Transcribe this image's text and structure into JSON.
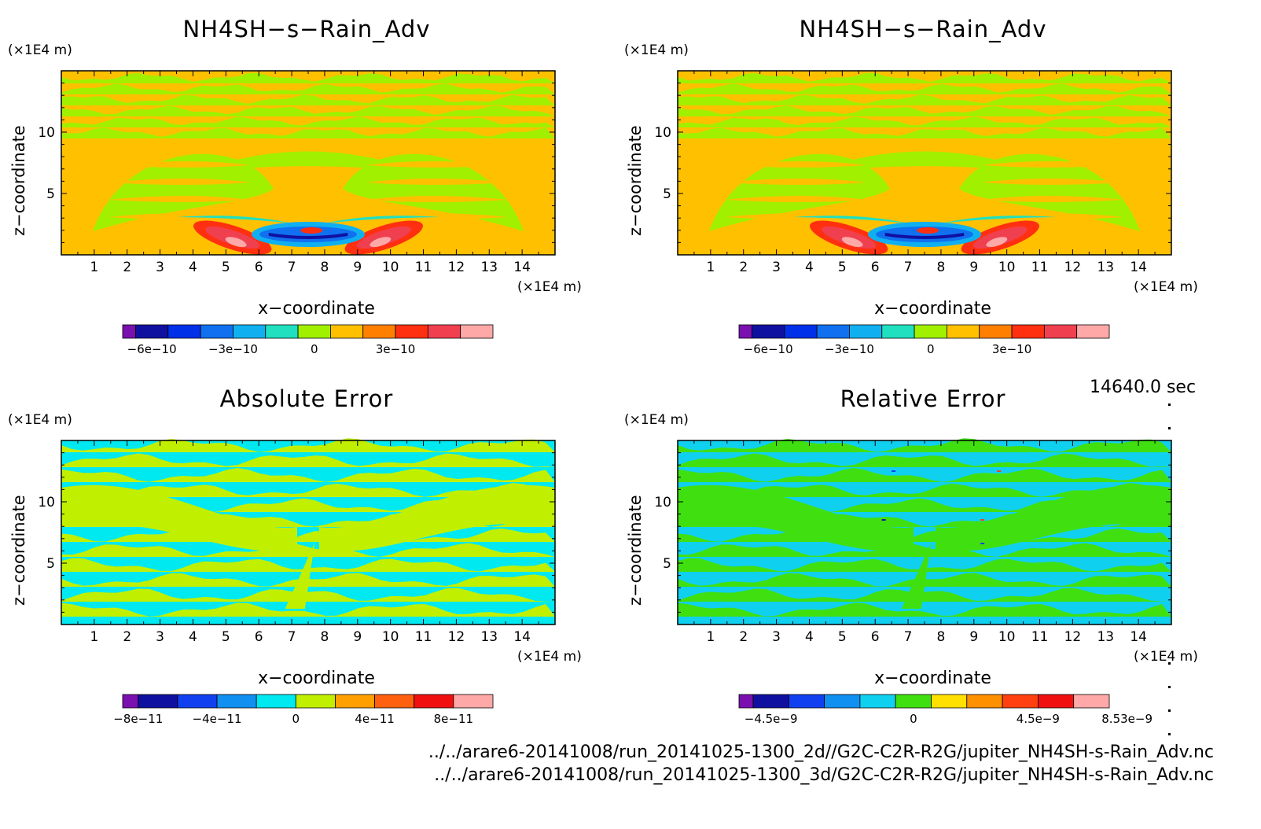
{
  "time_label": "14640.0 sec",
  "files": [
    "../../arare6-20141008/run_20141025-1300_2d//G2C-C2R-R2G/jupiter_NH4SH-s-Rain_Adv.nc",
    "../../arare6-20141008/run_20141025-1300_3d/G2C-C2R-R2G/jupiter_NH4SH-s-Rain_Adv.nc"
  ],
  "chart_data": [
    {
      "type": "heatmap",
      "title": "NH4SH−s−Rain_Adv",
      "xlabel": "x−coordinate",
      "ylabel": "z−coordinate",
      "x_unit": "(×1E4 m)",
      "z_unit": "(×1E4 m)",
      "xlim": [
        0,
        15
      ],
      "ylim": [
        0,
        15
      ],
      "x_ticks": [
        1,
        2,
        3,
        4,
        5,
        6,
        7,
        8,
        9,
        10,
        11,
        12,
        13,
        14
      ],
      "z_ticks": [
        5,
        10
      ],
      "colorbar_ticks": [
        "−6e−10",
        "−3e−10",
        "0",
        "3e−10"
      ],
      "colorbar_colors": [
        "#7a10b0",
        "#1010a0",
        "#0030e8",
        "#1070f0",
        "#10b0f0",
        "#20e0c0",
        "#a0f000",
        "#ffc000",
        "#ff8000",
        "#ff3010",
        "#f04050",
        "#ffa8a8"
      ]
    },
    {
      "type": "heatmap",
      "title": "NH4SH−s−Rain_Adv",
      "xlabel": "x−coordinate",
      "ylabel": "z−coordinate",
      "x_unit": "(×1E4 m)",
      "z_unit": "(×1E4 m)",
      "xlim": [
        0,
        15
      ],
      "ylim": [
        0,
        15
      ],
      "x_ticks": [
        1,
        2,
        3,
        4,
        5,
        6,
        7,
        8,
        9,
        10,
        11,
        12,
        13,
        14
      ],
      "z_ticks": [
        5,
        10
      ],
      "colorbar_ticks": [
        "−6e−10",
        "−3e−10",
        "0",
        "3e−10"
      ],
      "colorbar_colors": [
        "#7a10b0",
        "#1010a0",
        "#0030e8",
        "#1070f0",
        "#10b0f0",
        "#20e0c0",
        "#a0f000",
        "#ffc000",
        "#ff8000",
        "#ff3010",
        "#f04050",
        "#ffa8a8"
      ]
    },
    {
      "type": "heatmap",
      "title": "Absolute Error",
      "xlabel": "x−coordinate",
      "ylabel": "z−coordinate",
      "x_unit": "(×1E4 m)",
      "z_unit": "(×1E4 m)",
      "xlim": [
        0,
        15
      ],
      "ylim": [
        0,
        15
      ],
      "x_ticks": [
        1,
        2,
        3,
        4,
        5,
        6,
        7,
        8,
        9,
        10,
        11,
        12,
        13,
        14
      ],
      "z_ticks": [
        5,
        10
      ],
      "colorbar_ticks": [
        "−8e−11",
        "−4e−11",
        "0",
        "4e−11",
        "8e−11"
      ],
      "colorbar_colors": [
        "#7a10b0",
        "#1010a0",
        "#1040f0",
        "#1090f0",
        "#00e8f0",
        "#c0f000",
        "#ffa000",
        "#ff6010",
        "#f01010",
        "#ffa8a8"
      ]
    },
    {
      "type": "heatmap",
      "title": "Relative Error",
      "xlabel": "x−coordinate",
      "ylabel": "z−coordinate",
      "x_unit": "(×1E4 m)",
      "z_unit": "(×1E4 m)",
      "xlim": [
        0,
        15
      ],
      "ylim": [
        0,
        15
      ],
      "x_ticks": [
        1,
        2,
        3,
        4,
        5,
        6,
        7,
        8,
        9,
        10,
        11,
        12,
        13,
        14
      ],
      "z_ticks": [
        5,
        10
      ],
      "colorbar_ticks": [
        "−4.5e−9",
        "0",
        "4.5e−9",
        "8.53e−9"
      ],
      "colorbar_colors": [
        "#7a10b0",
        "#1010a0",
        "#1040f0",
        "#1090f0",
        "#10d0f0",
        "#40e010",
        "#ffe000",
        "#ff9000",
        "#ff4010",
        "#f01010",
        "#ffa8a8"
      ]
    }
  ]
}
